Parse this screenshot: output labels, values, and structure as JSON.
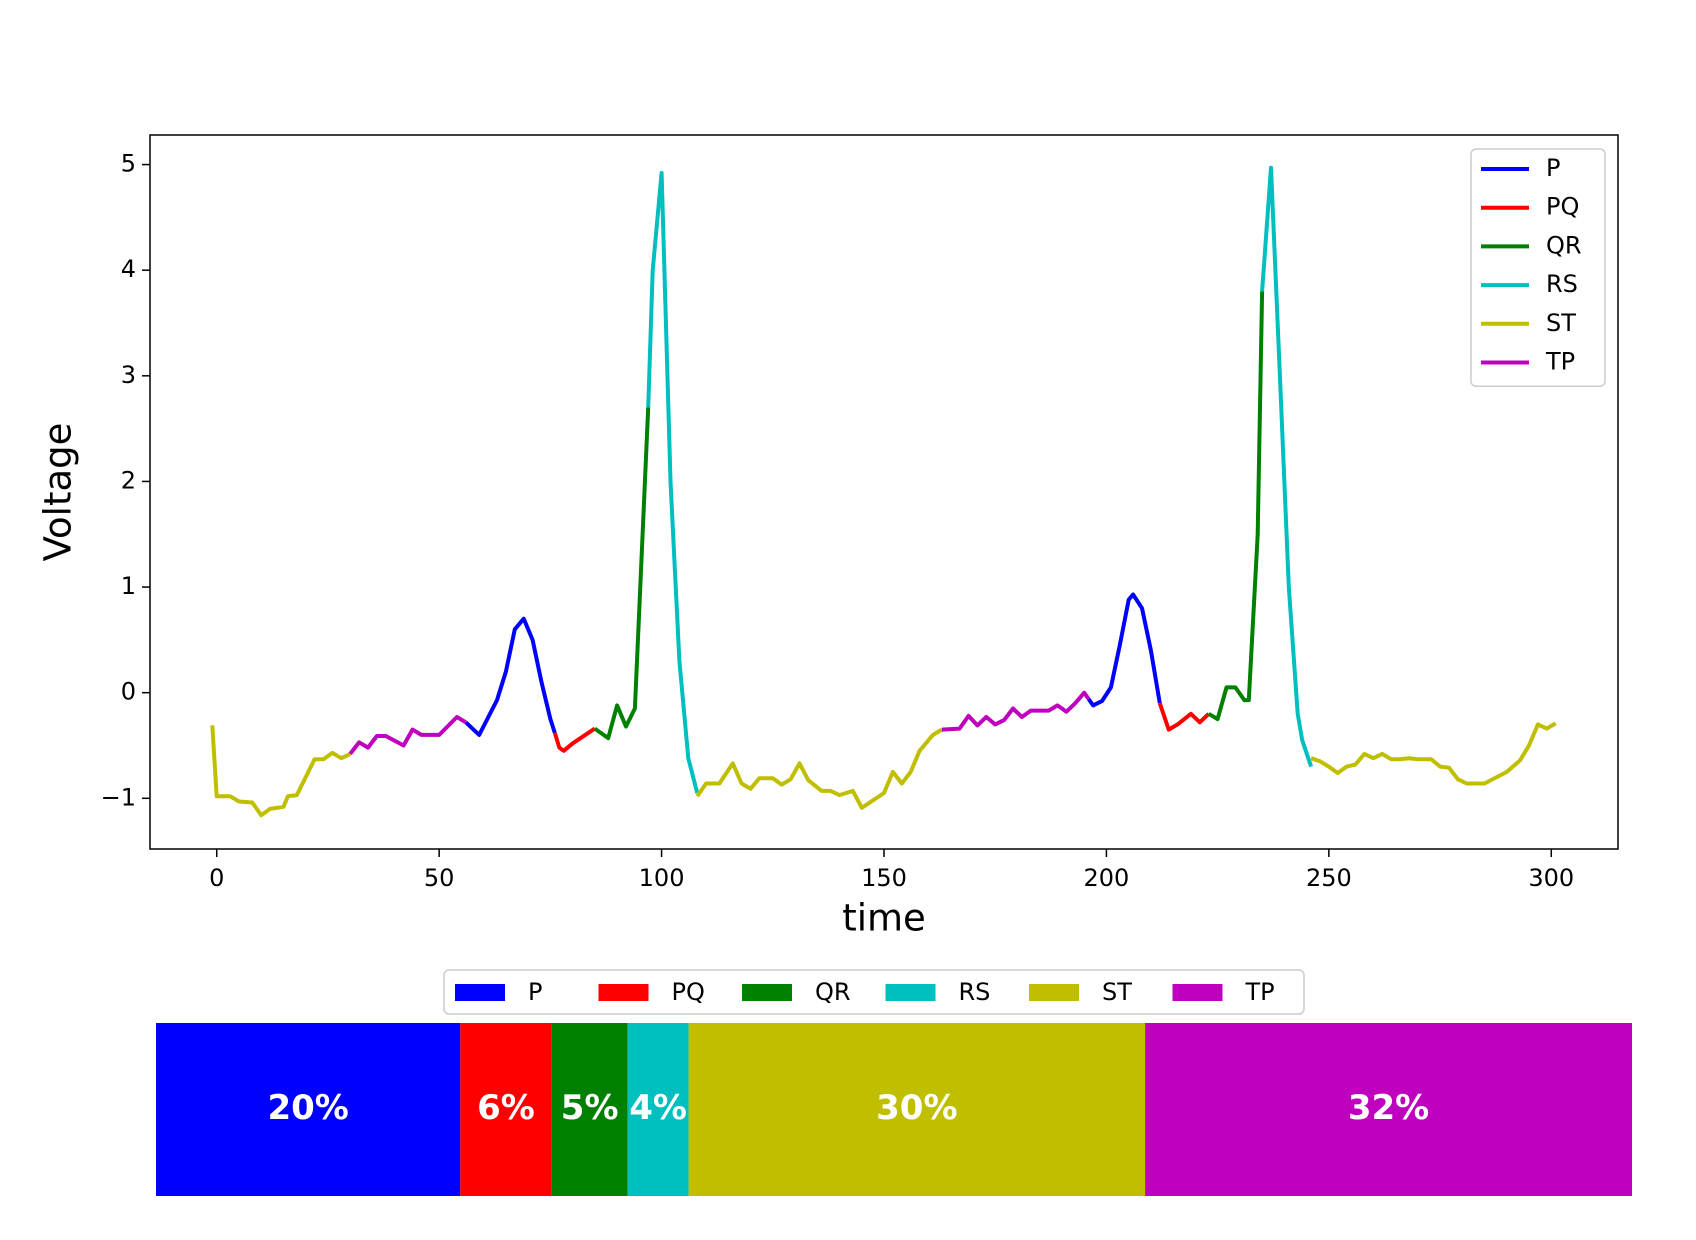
{
  "chart_data": [
    {
      "type": "line",
      "xlabel": "time",
      "ylabel": "Voltage",
      "xlim": [
        -15,
        315
      ],
      "ylim": [
        -1.48,
        5.28
      ],
      "xticks": [
        0,
        50,
        100,
        150,
        200,
        250,
        300
      ],
      "yticks": [
        {
          "value": -1,
          "label": "−1"
        },
        0,
        1,
        2,
        3,
        4,
        5
      ],
      "legend": "upper right",
      "series": [
        {
          "name": "P",
          "color": "#0000ff",
          "x": [
            56,
            59,
            63,
            65,
            67,
            69,
            71,
            73,
            75,
            76,
            null,
            196,
            197,
            199,
            201,
            203,
            205,
            206,
            208,
            210,
            212
          ],
          "values": [
            -0.28,
            -0.4,
            -0.07,
            0.2,
            0.6,
            0.7,
            0.5,
            0.1,
            -0.25,
            -0.38,
            null,
            -0.06,
            -0.12,
            -0.08,
            0.05,
            0.45,
            0.88,
            0.93,
            0.8,
            0.4,
            -0.1
          ]
        },
        {
          "name": "PQ",
          "color": "#ff0000",
          "x": [
            76,
            77,
            78,
            80,
            85,
            null,
            212,
            214,
            216,
            219,
            221,
            223
          ],
          "values": [
            -0.38,
            -0.52,
            -0.55,
            -0.48,
            -0.34,
            null,
            -0.1,
            -0.35,
            -0.3,
            -0.2,
            -0.28,
            -0.2
          ]
        },
        {
          "name": "QR",
          "color": "#008000",
          "x": [
            85,
            88,
            90,
            92,
            94,
            97,
            null,
            223,
            225,
            227,
            229,
            231,
            232,
            234,
            235
          ],
          "values": [
            -0.34,
            -0.43,
            -0.12,
            -0.32,
            -0.15,
            2.7,
            null,
            -0.2,
            -0.25,
            0.05,
            0.05,
            -0.07,
            -0.07,
            1.5,
            3.8
          ]
        },
        {
          "name": "RS",
          "color": "#00bfbf",
          "x": [
            97,
            98,
            100,
            102,
            104,
            106,
            108,
            null,
            235,
            237,
            239,
            241,
            243,
            244,
            246
          ],
          "values": [
            2.7,
            4.0,
            4.92,
            2.0,
            0.3,
            -0.62,
            -0.95,
            null,
            3.8,
            4.97,
            3.0,
            1.0,
            -0.2,
            -0.45,
            -0.7
          ]
        },
        {
          "name": "ST",
          "color": "#bfbf00",
          "x": [
            -1,
            0,
            3,
            5,
            8,
            10,
            12,
            15,
            16,
            18,
            22,
            24,
            26,
            28,
            30,
            null,
            108,
            110,
            113,
            116,
            118,
            120,
            122,
            125,
            127,
            129,
            131,
            133,
            136,
            138,
            140,
            143,
            145,
            150,
            152,
            154,
            156,
            158,
            161,
            163,
            null,
            246,
            248,
            250,
            252,
            254,
            256,
            258,
            260,
            262,
            264,
            266,
            268,
            270,
            273,
            275,
            277,
            279,
            281,
            285,
            290,
            293,
            295,
            297,
            299,
            301
          ],
          "values": [
            -0.31,
            -0.98,
            -0.98,
            -1.03,
            -1.04,
            -1.16,
            -1.1,
            -1.08,
            -0.98,
            -0.97,
            -0.63,
            -0.63,
            -0.57,
            -0.62,
            -0.58,
            null,
            -0.98,
            -0.86,
            -0.86,
            -0.67,
            -0.86,
            -0.91,
            -0.81,
            -0.81,
            -0.87,
            -0.82,
            -0.67,
            -0.83,
            -0.93,
            -0.93,
            -0.97,
            -0.93,
            -1.09,
            -0.95,
            -0.75,
            -0.86,
            -0.75,
            -0.55,
            -0.4,
            -0.35,
            null,
            -0.62,
            -0.65,
            -0.7,
            -0.76,
            -0.7,
            -0.68,
            -0.58,
            -0.62,
            -0.58,
            -0.63,
            -0.63,
            -0.62,
            -0.63,
            -0.63,
            -0.7,
            -0.71,
            -0.82,
            -0.86,
            -0.86,
            -0.75,
            -0.64,
            -0.5,
            -0.3,
            -0.34,
            -0.29
          ]
        },
        {
          "name": "TP",
          "color": "#bf00bf",
          "x": [
            30,
            32,
            34,
            36,
            38,
            42,
            44,
            46,
            50,
            54,
            56,
            null,
            163,
            167,
            169,
            171,
            173,
            175,
            177,
            179,
            181,
            183,
            187,
            189,
            191,
            193,
            195,
            196
          ],
          "values": [
            -0.58,
            -0.47,
            -0.52,
            -0.41,
            -0.41,
            -0.5,
            -0.35,
            -0.4,
            -0.4,
            -0.23,
            -0.28,
            null,
            -0.35,
            -0.34,
            -0.22,
            -0.31,
            -0.23,
            -0.3,
            -0.26,
            -0.15,
            -0.23,
            -0.17,
            -0.17,
            -0.12,
            -0.18,
            -0.1,
            0.0,
            -0.06
          ]
        }
      ]
    },
    {
      "type": "stacked-bar",
      "legend": "upper center",
      "series": [
        {
          "name": "P",
          "color": "#0000ff",
          "values": [
            20
          ],
          "value_labels": [
            "20%"
          ]
        },
        {
          "name": "PQ",
          "color": "#ff0000",
          "values": [
            6
          ],
          "value_labels": [
            "6%"
          ]
        },
        {
          "name": "QR",
          "color": "#008000",
          "values": [
            5
          ],
          "value_labels": [
            "5%"
          ]
        },
        {
          "name": "RS",
          "color": "#00bfbf",
          "values": [
            4
          ],
          "value_labels": [
            "4%"
          ]
        },
        {
          "name": "ST",
          "color": "#bfbf00",
          "values": [
            30
          ],
          "value_labels": [
            "30%"
          ]
        },
        {
          "name": "TP",
          "color": "#bf00bf",
          "values": [
            32
          ],
          "value_labels": [
            "32%"
          ]
        }
      ]
    }
  ]
}
